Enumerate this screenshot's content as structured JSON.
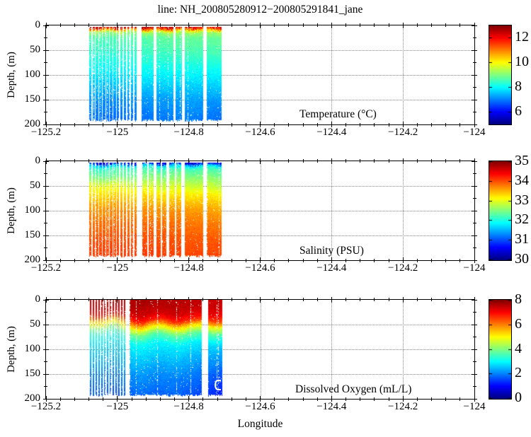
{
  "title": "line: NH_200805280912−200805291841_jane",
  "xlabel": "Longitude",
  "ylabel": "Depth, (m)",
  "axes": {
    "x_range": [
      -125.2,
      -124.0
    ],
    "y_range": [
      0,
      200
    ],
    "x_ticks": [
      {
        "value": -125.2,
        "label": "−125.2"
      },
      {
        "value": -125.0,
        "label": "−125"
      },
      {
        "value": -124.8,
        "label": "−124.8"
      },
      {
        "value": -124.6,
        "label": "−124.6"
      },
      {
        "value": -124.4,
        "label": "−124.4"
      },
      {
        "value": -124.2,
        "label": "−124.2"
      },
      {
        "value": -124.0,
        "label": "−124"
      }
    ],
    "x_minor_step": 0.04,
    "y_ticks": [
      {
        "value": 0,
        "label": "0"
      },
      {
        "value": 50,
        "label": "50"
      },
      {
        "value": 100,
        "label": "100"
      },
      {
        "value": 150,
        "label": "150"
      },
      {
        "value": 200,
        "label": "200"
      }
    ],
    "y_minor_step": 25,
    "grid": "dotted"
  },
  "chart_data": [
    {
      "type": "heatmap",
      "label": "Temperature (°C)",
      "colormap": "jet",
      "clim": [
        5,
        13
      ],
      "colorbar_ticks": [
        12,
        10,
        8,
        6
      ],
      "data_lon_range": [
        -125.083,
        -124.709
      ],
      "depth_span": [
        3,
        192
      ],
      "depths": [
        0,
        4,
        8,
        14,
        25,
        40,
        60,
        80,
        110,
        150,
        193
      ],
      "columns": [
        {
          "lon": -125.083,
          "values": [
            12.8,
            12.5,
            10.8,
            9.1,
            8.6,
            8.5,
            8.3,
            8.1,
            7.7,
            7.2,
            6.9
          ]
        },
        {
          "lon": -125.0,
          "values": [
            13.0,
            12.7,
            11.0,
            9.1,
            8.6,
            8.5,
            8.3,
            8.1,
            7.7,
            7.1,
            6.8
          ]
        },
        {
          "lon": -124.9,
          "values": [
            12.9,
            12.6,
            11.2,
            9.3,
            8.7,
            8.6,
            8.4,
            8.2,
            7.8,
            7.2,
            6.9
          ]
        },
        {
          "lon": -124.8,
          "values": [
            12.6,
            12.3,
            10.8,
            9.3,
            8.8,
            8.7,
            8.5,
            8.2,
            7.8,
            7.3,
            7.0
          ]
        },
        {
          "lon": -124.709,
          "values": [
            12.5,
            12.1,
            10.6,
            9.2,
            8.8,
            8.7,
            8.5,
            8.2,
            7.8,
            7.2,
            6.8
          ]
        }
      ],
      "stripes": [
        {
          "from": -125.083,
          "to": -124.946,
          "period": 0.0098,
          "gap": 0.0032
        }
      ],
      "gaps": [
        {
          "lon": -124.939,
          "width": 0.013
        },
        {
          "lon": -124.895,
          "width": 0.007
        },
        {
          "lon": -124.84,
          "width": 0.006
        },
        {
          "lon": -124.816,
          "width": 0.008
        },
        {
          "lon": -124.755,
          "width": 0.011
        }
      ],
      "wave_amp": 1.5,
      "wave_freq": 90
    },
    {
      "type": "heatmap",
      "label": "Salinity (PSU)",
      "colormap": "jet",
      "clim": [
        30,
        35
      ],
      "colorbar_ticks": [
        35,
        34,
        33,
        32,
        31,
        30
      ],
      "data_lon_range": [
        -125.083,
        -124.709
      ],
      "depth_span": [
        3,
        192
      ],
      "depths": [
        0,
        4,
        9,
        15,
        30,
        50,
        70,
        95,
        125,
        160,
        193
      ],
      "columns": [
        {
          "lon": -125.083,
          "values": [
            30.2,
            30.5,
            31.6,
            32.1,
            32.4,
            33.0,
            33.3,
            33.6,
            33.8,
            34.0,
            34.1
          ]
        },
        {
          "lon": -125.0,
          "values": [
            30.1,
            30.4,
            31.7,
            32.2,
            32.4,
            33.0,
            33.35,
            33.65,
            33.85,
            34.0,
            34.1
          ]
        },
        {
          "lon": -124.9,
          "values": [
            30.3,
            30.6,
            31.8,
            32.2,
            32.5,
            32.9,
            33.3,
            33.6,
            33.85,
            34.0,
            34.1
          ]
        },
        {
          "lon": -124.8,
          "values": [
            30.2,
            30.5,
            31.7,
            32.2,
            32.5,
            32.9,
            33.25,
            33.6,
            33.8,
            33.95,
            34.05
          ]
        },
        {
          "lon": -124.709,
          "values": [
            30.4,
            30.7,
            31.8,
            32.2,
            32.5,
            32.8,
            33.2,
            33.5,
            33.75,
            33.95,
            34.05
          ]
        }
      ],
      "stripes": [
        {
          "from": -125.083,
          "to": -124.94,
          "period": 0.0098,
          "gap": 0.0032
        },
        {
          "from": -124.935,
          "to": -124.82,
          "period": 0.019,
          "gap": 0.004
        }
      ],
      "gaps": [
        {
          "lon": -124.939,
          "width": 0.013
        },
        {
          "lon": -124.894,
          "width": 0.008
        },
        {
          "lon": -124.859,
          "width": 0.006
        },
        {
          "lon": -124.816,
          "width": 0.008
        },
        {
          "lon": -124.755,
          "width": 0.011
        }
      ],
      "wave_amp": 2,
      "wave_freq": 75
    },
    {
      "type": "heatmap",
      "label": "Dissolved Oxygen (mL/L)",
      "colormap": "jet",
      "clim": [
        0,
        8
      ],
      "colorbar_ticks": [
        8,
        6,
        4,
        2,
        0
      ],
      "data_lon_range": [
        -125.081,
        -124.707
      ],
      "depth_span": [
        0.5,
        193
      ],
      "depths": [
        0,
        15,
        30,
        42,
        55,
        70,
        90,
        120,
        150,
        175,
        193
      ],
      "columns": [
        {
          "lon": -125.081,
          "values": [
            7.4,
            7.3,
            6.6,
            5.2,
            4.0,
            3.2,
            2.8,
            2.4,
            2.0,
            1.8,
            1.7
          ]
        },
        {
          "lon": -125.01,
          "values": [
            7.5,
            7.4,
            7.0,
            5.6,
            4.2,
            3.3,
            2.8,
            2.4,
            2.0,
            1.8,
            1.6
          ]
        },
        {
          "lon": -124.93,
          "values": [
            7.7,
            7.6,
            7.4,
            6.9,
            5.4,
            3.9,
            3.0,
            2.6,
            2.2,
            2.0,
            1.8
          ]
        },
        {
          "lon": -124.85,
          "values": [
            7.6,
            7.5,
            7.3,
            6.6,
            5.0,
            3.7,
            2.9,
            2.5,
            2.1,
            1.9,
            1.8
          ]
        },
        {
          "lon": -124.78,
          "values": [
            7.5,
            7.5,
            7.2,
            6.7,
            5.1,
            3.8,
            2.9,
            2.4,
            2.0,
            1.8,
            1.6
          ]
        },
        {
          "lon": -124.707,
          "values": [
            7.4,
            7.3,
            7.0,
            6.3,
            4.6,
            3.4,
            2.6,
            2.1,
            1.6,
            1.3,
            1.1
          ]
        }
      ],
      "stripes": [
        {
          "from": -125.081,
          "to": -124.978,
          "period": 0.008,
          "gap": 0.0035
        }
      ],
      "gaps": [
        {
          "lon": -124.971,
          "width": 0.012
        },
        {
          "lon": -124.754,
          "width": 0.018
        }
      ],
      "wave_amp": 4.5,
      "wave_freq": 55
    }
  ]
}
